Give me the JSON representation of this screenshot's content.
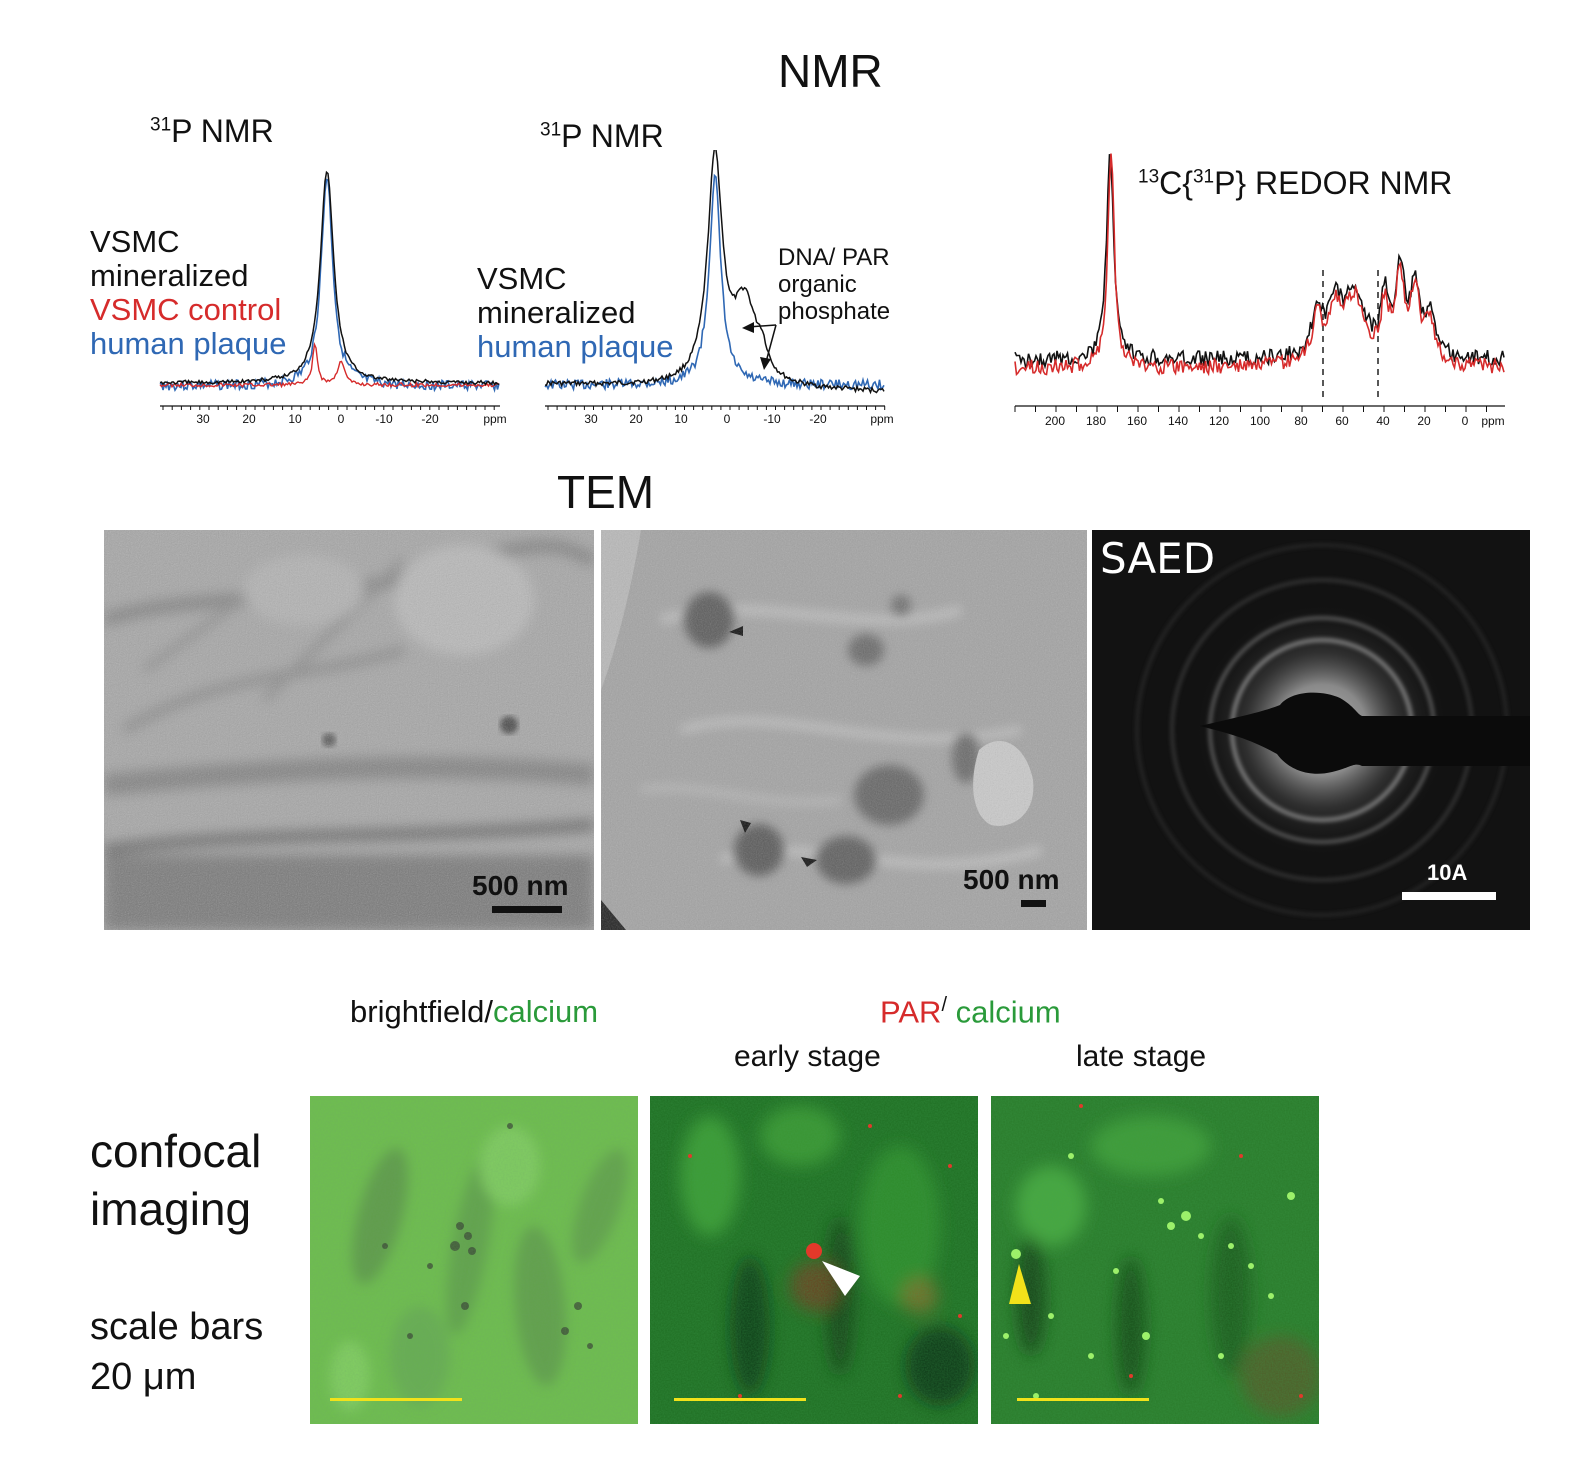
{
  "nmr": {
    "section_title": "NMR",
    "plot1": {
      "title_sup": "31",
      "title_main": "P NMR",
      "legend": [
        {
          "text": "VSMC",
          "color": "#111111"
        },
        {
          "text": "mineralized",
          "color": "#111111"
        },
        {
          "text": "VSMC control",
          "color": "#d62b2b"
        },
        {
          "text": "human plaque",
          "color": "#2f68b4"
        }
      ],
      "ticks": [
        "30",
        "20",
        "10",
        "0",
        "-10",
        "-20"
      ],
      "unit": "ppm"
    },
    "plot2": {
      "title_sup": "31",
      "title_main": "P NMR",
      "legend": [
        {
          "text": "VSMC",
          "color": "#111111"
        },
        {
          "text": "mineralized",
          "color": "#111111"
        },
        {
          "text": "human plaque",
          "color": "#2f68b4"
        }
      ],
      "annotation": [
        "DNA/ PAR",
        "organic",
        "phosphate"
      ],
      "ticks": [
        "30",
        "20",
        "10",
        "0",
        "-10",
        "-20"
      ],
      "unit": "ppm"
    },
    "plot3": {
      "title_sup1": "13",
      "title_part1": "C{",
      "title_sup2": "31",
      "title_part2": "P} REDOR NMR",
      "ticks": [
        "200",
        "180",
        "160",
        "140",
        "120",
        "100",
        "80",
        "60",
        "40",
        "20",
        "0"
      ],
      "unit": "ppm"
    }
  },
  "tem": {
    "section_title": "TEM",
    "panel1_scale": "500 nm",
    "panel2_scale": "500 nm",
    "panel3_label": "SAED",
    "panel3_scale": "10A"
  },
  "confocal": {
    "header_left_part1": "brightfield/",
    "header_left_part2": "calcium",
    "header_right_part1": "PAR",
    "header_right_sep": "/",
    "header_right_part2": "calcium",
    "early_label": "early stage",
    "late_label": "late stage",
    "side_label_line1": "confocal",
    "side_label_line2": "imaging",
    "scale_line1": "scale bars",
    "scale_line2": "20 μm",
    "colors": {
      "green": "#2a9a3a",
      "red": "#d62b2b",
      "yellow": "#f2e21a"
    }
  }
}
